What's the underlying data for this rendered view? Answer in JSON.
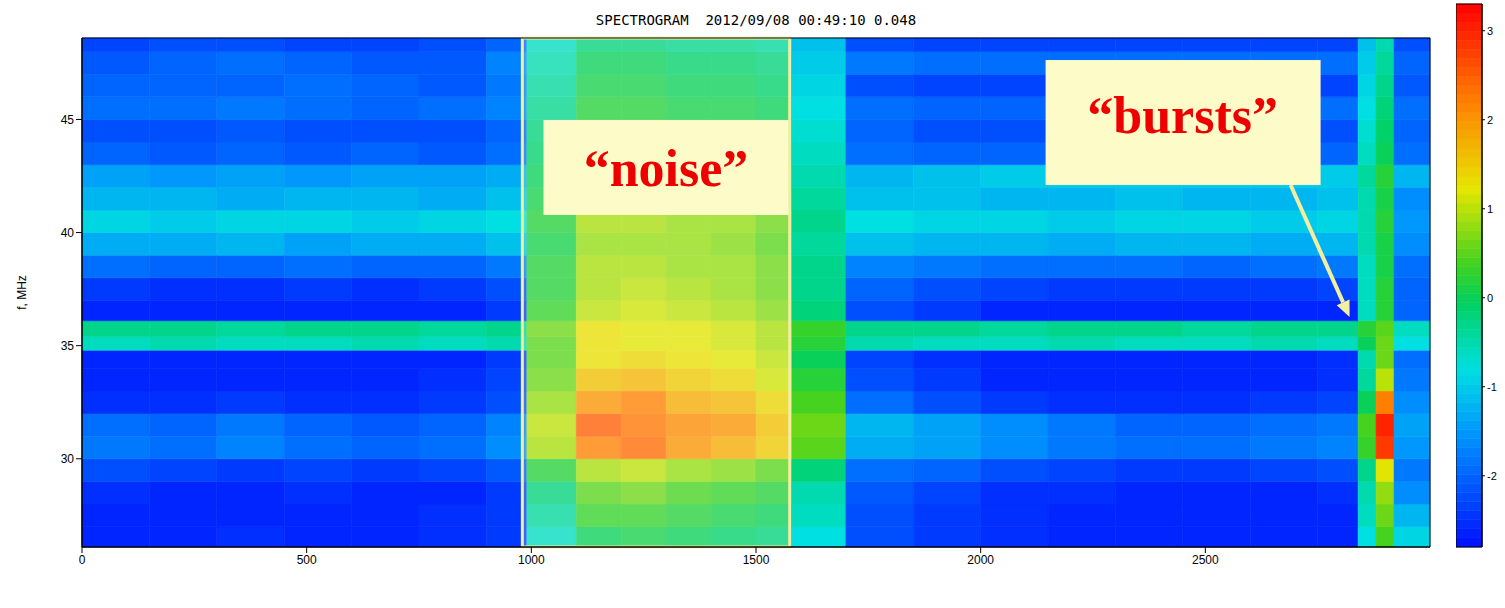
{
  "chart_data": {
    "type": "heatmap",
    "title": "SPECTROGRAM  2012/09/08 00:49:10 0.048",
    "y_label": "f, MHz",
    "xlim": [
      0,
      3000
    ],
    "xticks": [
      0,
      500,
      1000,
      1500,
      2000,
      2500
    ],
    "ylim": [
      26.1,
      48.6
    ],
    "yticks": [
      30,
      35,
      40,
      45
    ],
    "x_bins": [
      0,
      150,
      300,
      450,
      600,
      750,
      900,
      990,
      1100,
      1200,
      1300,
      1400,
      1500,
      1580,
      1700,
      1850,
      2000,
      2150,
      2300,
      2450,
      2600,
      2750,
      2840,
      2880,
      2920,
      3000
    ],
    "y_bins": [
      26.1,
      27,
      28,
      29,
      30,
      31,
      32,
      33,
      34,
      34.8,
      35.4,
      36.1,
      37,
      38,
      39,
      40,
      41,
      42,
      43,
      44,
      45,
      46,
      47,
      48,
      48.6
    ],
    "cells": [
      [
        -2.6,
        -2.6,
        -2.5,
        -2.6,
        -2.6,
        -2.5,
        -2.4,
        -0.6,
        0.0,
        0.1,
        0.0,
        -0.1,
        -0.2,
        -0.8,
        -2.2,
        -2.4,
        -2.5,
        -2.6,
        -2.6,
        -2.6,
        -2.6,
        -2.6,
        -0.8,
        0.4,
        -0.9
      ],
      [
        -2.6,
        -2.6,
        -2.6,
        -2.6,
        -2.6,
        -2.5,
        -2.4,
        -0.4,
        0.3,
        0.3,
        0.2,
        0.1,
        0.0,
        -0.6,
        -2.2,
        -2.4,
        -2.5,
        -2.6,
        -2.6,
        -2.6,
        -2.6,
        -2.6,
        -0.6,
        0.6,
        -1.2
      ],
      [
        -2.5,
        -2.6,
        -2.6,
        -2.5,
        -2.6,
        -2.6,
        -2.4,
        -0.2,
        0.5,
        0.6,
        0.4,
        0.3,
        0.2,
        -0.5,
        -2.1,
        -2.3,
        -2.5,
        -2.5,
        -2.6,
        -2.6,
        -2.6,
        -2.5,
        -0.5,
        0.8,
        -1.6
      ],
      [
        -2.2,
        -2.3,
        -2.4,
        -2.3,
        -2.4,
        -2.3,
        -2.1,
        0.2,
        0.9,
        1.0,
        0.8,
        0.7,
        0.5,
        -0.2,
        -1.9,
        -2.0,
        -2.2,
        -2.3,
        -2.4,
        -2.4,
        -2.3,
        -2.2,
        -0.3,
        1.2,
        -1.8
      ],
      [
        -1.8,
        -1.9,
        -1.7,
        -1.9,
        -2.0,
        -1.9,
        -1.6,
        0.9,
        2.2,
        2.4,
        2.0,
        1.8,
        1.5,
        0.5,
        -1.3,
        -1.4,
        -1.6,
        -1.8,
        -1.9,
        -1.9,
        -1.8,
        -1.7,
        0.3,
        2.8,
        -1.5
      ],
      [
        -1.9,
        -2.0,
        -1.8,
        -2.0,
        -2.1,
        -2.0,
        -1.7,
        1.0,
        2.5,
        2.3,
        2.1,
        2.0,
        1.6,
        0.6,
        -1.2,
        -1.4,
        -1.6,
        -1.8,
        -2.0,
        -2.0,
        -1.9,
        -1.8,
        0.4,
        3.0,
        -1.4
      ],
      [
        -2.5,
        -2.5,
        -2.4,
        -2.5,
        -2.5,
        -2.4,
        -2.2,
        0.8,
        2.0,
        2.2,
        1.8,
        1.7,
        1.4,
        0.4,
        -1.9,
        -2.2,
        -2.4,
        -2.5,
        -2.5,
        -2.5,
        -2.4,
        -2.3,
        0.0,
        2.2,
        -1.6
      ],
      [
        -2.6,
        -2.6,
        -2.6,
        -2.6,
        -2.6,
        -2.5,
        -2.3,
        0.6,
        1.6,
        1.7,
        1.5,
        1.4,
        1.1,
        0.2,
        -2.2,
        -2.4,
        -2.6,
        -2.6,
        -2.6,
        -2.6,
        -2.6,
        -2.5,
        -0.4,
        1.0,
        -1.8
      ],
      [
        -2.6,
        -2.6,
        -2.6,
        -2.6,
        -2.6,
        -2.6,
        -2.4,
        0.5,
        1.3,
        1.4,
        1.3,
        1.2,
        1.0,
        0.0,
        -2.3,
        -2.5,
        -2.6,
        -2.6,
        -2.6,
        -2.6,
        -2.6,
        -2.5,
        -0.5,
        0.6,
        -1.9
      ],
      [
        -0.6,
        -0.5,
        -0.6,
        -0.6,
        -0.5,
        -0.6,
        -0.5,
        0.5,
        1.3,
        1.2,
        1.2,
        1.1,
        0.9,
        0.2,
        -0.5,
        -0.6,
        -0.6,
        -0.5,
        -0.6,
        -0.6,
        -0.5,
        -0.6,
        0.0,
        0.6,
        -0.8
      ],
      [
        -0.3,
        -0.3,
        -0.4,
        -0.3,
        -0.3,
        -0.4,
        -0.3,
        0.6,
        1.3,
        1.2,
        1.2,
        1.1,
        0.9,
        0.3,
        -0.3,
        -0.3,
        -0.4,
        -0.3,
        -0.3,
        -0.4,
        -0.3,
        -0.3,
        0.2,
        0.5,
        -0.6
      ],
      [
        -2.6,
        -2.6,
        -2.6,
        -2.6,
        -2.6,
        -2.6,
        -2.4,
        0.3,
        1.0,
        1.1,
        1.0,
        0.9,
        0.7,
        -0.2,
        -2.2,
        -2.4,
        -2.6,
        -2.6,
        -2.6,
        -2.6,
        -2.6,
        -2.6,
        -0.6,
        0.2,
        -2.0
      ],
      [
        -2.4,
        -2.5,
        -2.5,
        -2.4,
        -2.5,
        -2.4,
        -2.2,
        0.2,
        0.9,
        1.0,
        0.9,
        0.8,
        0.6,
        -0.3,
        -2.0,
        -2.2,
        -2.3,
        -2.4,
        -2.4,
        -2.4,
        -2.4,
        -2.3,
        -0.6,
        0.2,
        -2.0
      ],
      [
        -1.9,
        -2.0,
        -2.0,
        -1.9,
        -2.0,
        -2.0,
        -1.8,
        0.2,
        0.9,
        0.9,
        0.8,
        0.8,
        0.6,
        -0.3,
        -1.7,
        -1.8,
        -1.9,
        -1.9,
        -1.9,
        -2.0,
        -1.9,
        -1.8,
        -0.6,
        0.1,
        -1.9
      ],
      [
        -1.3,
        -1.3,
        -1.2,
        -1.4,
        -1.3,
        -1.3,
        -1.1,
        0.1,
        0.8,
        0.8,
        0.8,
        0.7,
        0.5,
        -0.4,
        -1.1,
        -1.2,
        -1.2,
        -1.3,
        -1.2,
        -1.2,
        -1.3,
        -1.2,
        -0.5,
        0.1,
        -1.6
      ],
      [
        -0.9,
        -1.0,
        -0.9,
        -0.9,
        -1.0,
        -0.9,
        -0.8,
        0.2,
        0.9,
        0.9,
        0.8,
        0.8,
        0.6,
        -0.3,
        -0.8,
        -0.9,
        -0.9,
        -1.0,
        -0.9,
        -0.9,
        -1.0,
        -0.9,
        -0.5,
        0.2,
        -1.5
      ],
      [
        -1.2,
        -1.2,
        -1.3,
        -1.2,
        -1.2,
        -1.3,
        -1.1,
        0.1,
        0.8,
        0.8,
        0.7,
        0.7,
        0.5,
        -0.4,
        -1.1,
        -1.1,
        -1.2,
        -1.2,
        -1.1,
        -1.2,
        -1.2,
        -1.1,
        -0.5,
        0.1,
        -1.6
      ],
      [
        -1.4,
        -1.5,
        -1.4,
        -1.5,
        -1.4,
        -1.4,
        -1.3,
        0.0,
        0.6,
        0.6,
        0.5,
        0.5,
        0.4,
        -0.5,
        -1.2,
        -1.1,
        -1.0,
        -1.0,
        -1.0,
        -1.0,
        -1.0,
        -1.0,
        -0.4,
        0.2,
        -1.2
      ],
      [
        -2.0,
        -2.1,
        -2.0,
        -2.1,
        -2.0,
        -2.1,
        -1.9,
        -0.1,
        0.4,
        0.4,
        0.3,
        0.3,
        0.2,
        -0.6,
        -1.9,
        -2.0,
        -2.0,
        -2.1,
        -2.0,
        -2.0,
        -2.1,
        -2.0,
        -0.6,
        0.0,
        -1.9
      ],
      [
        -2.2,
        -2.2,
        -2.1,
        -2.2,
        -2.2,
        -2.2,
        -2.0,
        -0.2,
        0.3,
        0.3,
        0.2,
        0.2,
        0.1,
        -0.7,
        -2.0,
        -2.2,
        -2.2,
        -2.3,
        -2.2,
        -2.3,
        -2.2,
        -2.2,
        -0.7,
        -0.1,
        -2.0
      ],
      [
        -1.9,
        -1.9,
        -1.8,
        -1.9,
        -2.0,
        -1.9,
        -1.7,
        -0.3,
        0.2,
        0.2,
        0.1,
        0.1,
        0.0,
        -0.8,
        -1.9,
        -2.0,
        -2.0,
        -2.0,
        -1.9,
        -2.0,
        -2.0,
        -1.9,
        -0.8,
        -0.2,
        -1.9
      ],
      [
        -2.0,
        -2.0,
        -2.0,
        -1.9,
        -2.0,
        -2.1,
        -1.8,
        -0.4,
        0.1,
        0.1,
        0.0,
        0.0,
        -0.1,
        -0.9,
        -2.2,
        -2.3,
        -2.3,
        -2.3,
        -2.3,
        -2.3,
        -2.3,
        -2.3,
        -0.9,
        -0.3,
        -2.1
      ],
      [
        -2.1,
        -2.0,
        -1.9,
        -2.0,
        -2.1,
        -2.1,
        -1.7,
        -0.5,
        0.0,
        0.0,
        -0.1,
        -0.1,
        -0.2,
        -1.0,
        -1.8,
        -1.9,
        -1.9,
        -1.9,
        -1.9,
        -1.9,
        -1.9,
        -1.9,
        -1.0,
        -0.4,
        -2.0
      ],
      [
        -2.3,
        -2.2,
        -2.2,
        -2.3,
        -2.3,
        -2.2,
        -2.0,
        -0.6,
        -0.2,
        -0.2,
        -0.3,
        -0.3,
        -0.4,
        -1.1,
        -2.2,
        -2.3,
        -2.3,
        -2.3,
        -2.3,
        -2.3,
        -2.3,
        -2.3,
        -1.1,
        -0.5,
        -2.2
      ]
    ],
    "colorbar_range": [
      -2.8,
      3.3
    ],
    "colorbar_ticks": [
      -2,
      -1,
      0,
      1,
      2,
      3
    ],
    "annotations": [
      {
        "text": "“noise”",
        "x_range": [
          980,
          1575
        ]
      },
      {
        "text": "“bursts”",
        "point": [
          2830,
          36
        ]
      }
    ]
  }
}
